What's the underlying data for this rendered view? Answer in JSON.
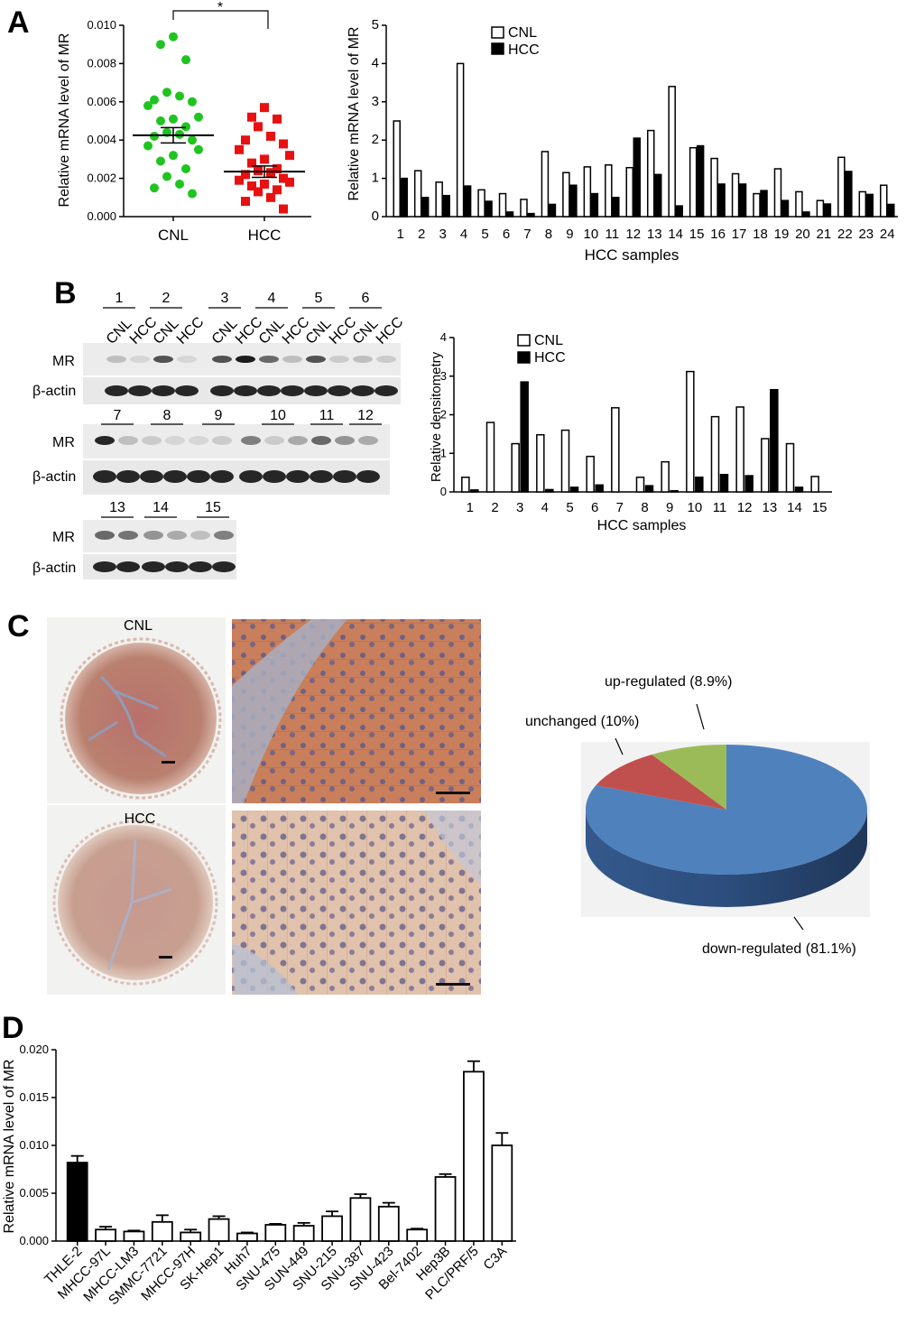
{
  "panel_labels": {
    "a": "A",
    "b": "B",
    "c": "C",
    "d": "D"
  },
  "chart_data": [
    {
      "id": "A-left",
      "type": "scatter",
      "ylabel": "Relative mRNA level of MR",
      "ylim": [
        0,
        0.01
      ],
      "yticks": [
        "0.000",
        "0.002",
        "0.004",
        "0.006",
        "0.008",
        "0.010"
      ],
      "categories": [
        "CNL",
        "HCC"
      ],
      "significance": "*",
      "colors": {
        "CNL": "#1fc41f",
        "HCC": "#e81010"
      },
      "series": [
        {
          "name": "CNL",
          "mean": 0.00425,
          "sem": 0.0004,
          "values": [
            0.0094,
            0.009,
            0.0082,
            0.0065,
            0.0063,
            0.0061,
            0.006,
            0.0058,
            0.0052,
            0.0051,
            0.005,
            0.0047,
            0.0044,
            0.0043,
            0.0042,
            0.004,
            0.0037,
            0.0035,
            0.0032,
            0.0029,
            0.0025,
            0.0021,
            0.0017,
            0.0015,
            0.0012
          ]
        },
        {
          "name": "HCC",
          "mean": 0.00235,
          "sem": 0.0003,
          "values": [
            0.0057,
            0.0052,
            0.0051,
            0.0047,
            0.0042,
            0.004,
            0.0038,
            0.0035,
            0.0032,
            0.003,
            0.0028,
            0.0025,
            0.0024,
            0.0023,
            0.0022,
            0.002,
            0.0019,
            0.0018,
            0.0017,
            0.0016,
            0.0014,
            0.0013,
            0.001,
            0.0008,
            0.0004
          ]
        }
      ]
    },
    {
      "id": "A-right",
      "type": "bar",
      "ylabel": "Relative mRNA level of MR",
      "xlabel": "HCC samples",
      "ylim": [
        0,
        5
      ],
      "yticks": [
        "0",
        "1",
        "2",
        "3",
        "4",
        "5"
      ],
      "categories": [
        "1",
        "2",
        "3",
        "4",
        "5",
        "6",
        "7",
        "8",
        "9",
        "10",
        "11",
        "12",
        "13",
        "14",
        "15",
        "16",
        "17",
        "18",
        "19",
        "20",
        "21",
        "22",
        "23",
        "24"
      ],
      "legend": [
        "CNL",
        "HCC"
      ],
      "series": [
        {
          "name": "CNL",
          "values": [
            2.5,
            1.2,
            0.9,
            4.0,
            0.7,
            0.6,
            0.45,
            1.7,
            1.15,
            1.3,
            1.35,
            1.28,
            2.25,
            3.4,
            1.8,
            1.52,
            1.12,
            0.6,
            1.25,
            0.65,
            0.42,
            1.55,
            0.65,
            0.82
          ]
        },
        {
          "name": "HCC",
          "values": [
            1.0,
            0.5,
            0.55,
            0.8,
            0.4,
            0.12,
            0.08,
            0.32,
            0.82,
            0.6,
            0.5,
            2.05,
            1.1,
            0.28,
            1.85,
            0.85,
            0.85,
            0.68,
            0.42,
            0.12,
            0.33,
            1.18,
            0.58,
            0.32
          ]
        }
      ]
    },
    {
      "id": "B-right",
      "type": "bar",
      "ylabel": "Relative densitometry",
      "xlabel": "HCC samples",
      "ylim": [
        0,
        4
      ],
      "yticks": [
        "0",
        "1",
        "2",
        "3",
        "4"
      ],
      "categories": [
        "1",
        "2",
        "3",
        "4",
        "5",
        "6",
        "7",
        "8",
        "9",
        "10",
        "11",
        "12",
        "13",
        "14",
        "15"
      ],
      "legend": [
        "CNL",
        "HCC"
      ],
      "series": [
        {
          "name": "CNL",
          "values": [
            0.38,
            1.8,
            1.25,
            1.48,
            1.6,
            0.92,
            2.18,
            0.38,
            0.78,
            3.12,
            1.95,
            2.2,
            1.38,
            1.25,
            0.4
          ]
        },
        {
          "name": "HCC",
          "values": [
            0.05,
            0.0,
            2.85,
            0.06,
            0.12,
            0.18,
            0.0,
            0.16,
            0.03,
            0.38,
            0.45,
            0.42,
            2.65,
            0.12,
            0.0
          ]
        }
      ]
    },
    {
      "id": "C-pie",
      "type": "pie",
      "slices": [
        {
          "label": "down-regulated (81.1%)",
          "value": 81.1,
          "color": "#4f81bd"
        },
        {
          "label": "unchanged (10%)",
          "value": 10,
          "color": "#c0504d"
        },
        {
          "label": "up-regulated (8.9%)",
          "value": 8.9,
          "color": "#9bbb59"
        }
      ]
    },
    {
      "id": "D",
      "type": "bar",
      "ylabel": "Relative mRNA level of MR",
      "ylim": [
        0,
        0.02
      ],
      "yticks": [
        "0.000",
        "0.005",
        "0.010",
        "0.015",
        "0.020"
      ],
      "categories": [
        "THLE-2",
        "MHCC-97L",
        "MHCC-LM3",
        "SMMC-7721",
        "MHCC-97H",
        "SK-Hep1",
        "Huh7",
        "SNU-475",
        "SUN-449",
        "SNU-215",
        "SNU-387",
        "SNU-423",
        "Bel-7402",
        "Hep3B",
        "PLC/PRF/5",
        "C3A"
      ],
      "values": [
        0.0082,
        0.0012,
        0.001,
        0.002,
        0.0009,
        0.0023,
        0.0008,
        0.0017,
        0.0016,
        0.0026,
        0.0045,
        0.0036,
        0.0012,
        0.0067,
        0.0177,
        0.01
      ],
      "errors": [
        0.0007,
        0.0003,
        0.0001,
        0.0007,
        0.0003,
        0.0003,
        0.0001,
        0.0001,
        0.0003,
        0.0005,
        0.0004,
        0.0004,
        0.0001,
        0.0003,
        0.0011,
        0.0013
      ],
      "colors": {
        "control": "#000000",
        "others": "#ffffff"
      }
    }
  ],
  "western": {
    "lane_labels": [
      "CNL",
      "HCC",
      "CNL",
      "HCC",
      "CNL",
      "HCC",
      "CNL",
      "HCC",
      "CNL",
      "HCC",
      "CNL",
      "HCC"
    ],
    "groups_row1": [
      "1",
      "2",
      "3",
      "4",
      "5",
      "6"
    ],
    "groups_row2": [
      "7",
      "8",
      "9",
      "10",
      "11",
      "12"
    ],
    "groups_row3": [
      "13",
      "14",
      "15"
    ],
    "row_labels": {
      "mr": "MR",
      "actin": "β-actin"
    }
  },
  "ihc": {
    "cnl": "CNL",
    "hcc": "HCC"
  }
}
